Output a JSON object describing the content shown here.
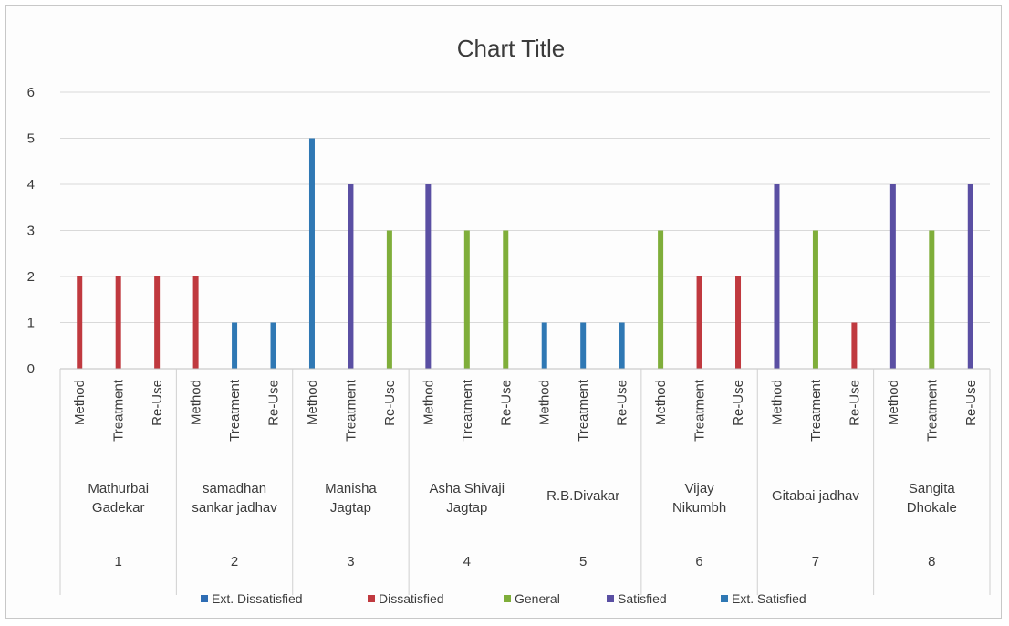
{
  "chart_data": {
    "type": "bar",
    "title": "Chart Title",
    "xlabel": "",
    "ylabel": "",
    "ylim": [
      0,
      6
    ],
    "yticks": [
      "0",
      "1",
      "2",
      "3",
      "4",
      "5",
      "6"
    ],
    "grid": true,
    "legend_position": "bottom",
    "colors": {
      "Ext. Dissatisfied": "#2e6db4",
      "Dissatisfied": "#c0393f",
      "General": "#7fae3a",
      "Satisfied": "#5a4fa3",
      "Ext. Satisfied": "#2f78b4"
    },
    "legend": [
      "Ext. Dissatisfied",
      "Dissatisfied",
      "General",
      "Satisfied",
      "Ext. Satisfied"
    ],
    "groups": [
      {
        "number": "1",
        "name": [
          "Mathurbai",
          "Gadekar"
        ],
        "bars": [
          {
            "label": "Method",
            "value": 2,
            "category": "Dissatisfied"
          },
          {
            "label": "Treatment",
            "value": 2,
            "category": "Dissatisfied"
          },
          {
            "label": "Re-Use",
            "value": 2,
            "category": "Dissatisfied"
          }
        ]
      },
      {
        "number": "2",
        "name": [
          "samadhan",
          "sankar jadhav"
        ],
        "bars": [
          {
            "label": "Method",
            "value": 2,
            "category": "Dissatisfied"
          },
          {
            "label": "Treatment",
            "value": 1,
            "category": "Ext. Satisfied"
          },
          {
            "label": "Re-Use",
            "value": 1,
            "category": "Ext. Satisfied"
          }
        ]
      },
      {
        "number": "3",
        "name": [
          "Manisha",
          "Jagtap"
        ],
        "bars": [
          {
            "label": "Method",
            "value": 5,
            "category": "Ext. Satisfied"
          },
          {
            "label": "Treatment",
            "value": 4,
            "category": "Satisfied"
          },
          {
            "label": "Re-Use",
            "value": 3,
            "category": "General"
          }
        ]
      },
      {
        "number": "4",
        "name": [
          "Asha Shivaji",
          "Jagtap"
        ],
        "bars": [
          {
            "label": "Method",
            "value": 4,
            "category": "Satisfied"
          },
          {
            "label": "Treatment",
            "value": 3,
            "category": "General"
          },
          {
            "label": "Re-Use",
            "value": 3,
            "category": "General"
          }
        ]
      },
      {
        "number": "5",
        "name": [
          "R.B.Divakar"
        ],
        "bars": [
          {
            "label": "Method",
            "value": 1,
            "category": "Ext. Satisfied"
          },
          {
            "label": "Treatment",
            "value": 1,
            "category": "Ext. Satisfied"
          },
          {
            "label": "Re-Use",
            "value": 1,
            "category": "Ext. Satisfied"
          }
        ]
      },
      {
        "number": "6",
        "name": [
          "Vijay",
          "Nikumbh"
        ],
        "bars": [
          {
            "label": "Method",
            "value": 3,
            "category": "General"
          },
          {
            "label": "Treatment",
            "value": 2,
            "category": "Dissatisfied"
          },
          {
            "label": "Re-Use",
            "value": 2,
            "category": "Dissatisfied"
          }
        ]
      },
      {
        "number": "7",
        "name": [
          "Gitabai jadhav"
        ],
        "bars": [
          {
            "label": "Method",
            "value": 4,
            "category": "Satisfied"
          },
          {
            "label": "Treatment",
            "value": 3,
            "category": "General"
          },
          {
            "label": "Re-Use",
            "value": 1,
            "category": "Dissatisfied"
          }
        ]
      },
      {
        "number": "8",
        "name": [
          "Sangita",
          "Dhokale"
        ],
        "bars": [
          {
            "label": "Method",
            "value": 4,
            "category": "Satisfied"
          },
          {
            "label": "Treatment",
            "value": 3,
            "category": "General"
          },
          {
            "label": "Re-Use",
            "value": 4,
            "category": "Satisfied"
          }
        ]
      }
    ]
  }
}
